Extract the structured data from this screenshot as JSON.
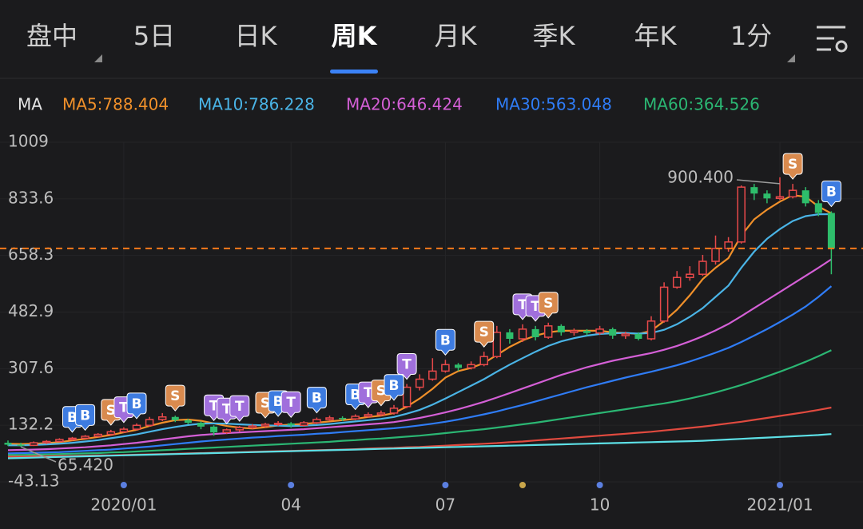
{
  "tabs": [
    "盘中",
    "5日",
    "日K",
    "周K",
    "月K",
    "季K",
    "年K",
    "1分"
  ],
  "active_tab": 3,
  "chart_data": {
    "type": "candlestick",
    "legend_title": "MA",
    "categories": [
      null,
      null,
      null,
      null,
      null,
      null,
      null,
      null,
      null,
      "2020/01",
      null,
      null,
      null,
      null,
      null,
      null,
      null,
      null,
      null,
      null,
      null,
      null,
      "04",
      null,
      null,
      null,
      null,
      null,
      null,
      null,
      null,
      null,
      null,
      null,
      "07",
      null,
      null,
      null,
      null,
      null,
      null,
      null,
      null,
      null,
      null,
      null,
      "10",
      null,
      null,
      null,
      null,
      null,
      null,
      null,
      null,
      null,
      null,
      null,
      null,
      null,
      "2021/01",
      null,
      null,
      null,
      null
    ],
    "open": [
      78,
      72,
      70,
      78,
      82,
      88,
      92,
      98,
      104,
      112,
      120,
      132,
      150,
      158,
      148,
      140,
      128,
      110,
      118,
      125,
      130,
      135,
      138,
      132,
      140,
      150,
      155,
      152,
      160,
      165,
      170,
      190,
      250,
      275,
      300,
      320,
      310,
      320,
      345,
      420,
      400,
      430,
      405,
      440,
      420,
      425,
      418,
      430,
      410,
      415,
      400,
      455,
      560,
      590,
      600,
      640,
      680,
      700,
      870,
      850,
      835,
      840,
      860,
      820,
      790
    ],
    "high": [
      85,
      78,
      82,
      86,
      92,
      96,
      102,
      108,
      118,
      126,
      138,
      158,
      170,
      162,
      152,
      144,
      132,
      122,
      130,
      136,
      140,
      145,
      142,
      145,
      156,
      162,
      160,
      166,
      172,
      178,
      195,
      260,
      290,
      340,
      335,
      325,
      330,
      360,
      440,
      430,
      445,
      440,
      450,
      445,
      432,
      430,
      440,
      435,
      422,
      420,
      470,
      575,
      610,
      625,
      660,
      720,
      715,
      875,
      880,
      860,
      900.4,
      880,
      870,
      830,
      795
    ],
    "low": [
      68,
      65.42,
      68,
      74,
      80,
      85,
      90,
      95,
      100,
      108,
      116,
      128,
      145,
      142,
      135,
      120,
      100,
      105,
      112,
      120,
      125,
      130,
      125,
      128,
      136,
      145,
      145,
      148,
      155,
      160,
      165,
      185,
      240,
      270,
      295,
      300,
      305,
      315,
      340,
      385,
      390,
      395,
      400,
      410,
      410,
      410,
      412,
      400,
      400,
      395,
      395,
      450,
      555,
      580,
      595,
      630,
      670,
      695,
      830,
      820,
      830,
      835,
      810,
      780,
      600
    ],
    "close": [
      72,
      70,
      78,
      82,
      88,
      92,
      98,
      104,
      112,
      120,
      132,
      150,
      158,
      148,
      140,
      128,
      110,
      118,
      125,
      130,
      135,
      138,
      132,
      140,
      150,
      155,
      152,
      160,
      165,
      170,
      185,
      250,
      275,
      300,
      320,
      310,
      320,
      345,
      420,
      400,
      430,
      405,
      440,
      420,
      425,
      418,
      430,
      410,
      415,
      400,
      455,
      560,
      590,
      600,
      640,
      680,
      700,
      870,
      850,
      835,
      840,
      860,
      820,
      790,
      680
    ],
    "up_color": "#e8494a",
    "down_color": "#2ebd6b",
    "series": [
      {
        "label": "MA5:788.404",
        "color": "#f0902a",
        "values": [
          75,
          74,
          75,
          77,
          80,
          85,
          90,
          96,
          102,
          110,
          118,
          130,
          140,
          148,
          150,
          146,
          138,
          130,
          125,
          122,
          126,
          132,
          134,
          136,
          140,
          144,
          148,
          152,
          158,
          162,
          170,
          190,
          215,
          245,
          280,
          300,
          310,
          325,
          350,
          375,
          395,
          410,
          420,
          425,
          425,
          425,
          425,
          420,
          418,
          415,
          425,
          455,
          490,
          535,
          585,
          620,
          650,
          720,
          770,
          800,
          825,
          845,
          840,
          810,
          788.404
        ]
      },
      {
        "label": "MA10:786.228",
        "color": "#4ab4e6",
        "values": [
          70,
          70,
          71,
          73,
          75,
          78,
          82,
          86,
          92,
          98,
          104,
          112,
          120,
          127,
          133,
          137,
          138,
          137,
          135,
          133,
          132,
          131,
          130,
          131,
          133,
          136,
          140,
          144,
          148,
          152,
          158,
          168,
          180,
          196,
          215,
          235,
          255,
          275,
          298,
          320,
          340,
          360,
          378,
          392,
          402,
          410,
          415,
          417,
          418,
          416,
          418,
          428,
          445,
          468,
          495,
          530,
          565,
          620,
          670,
          710,
          740,
          765,
          780,
          786,
          786.228
        ]
      },
      {
        "label": "MA20:646.424",
        "color": "#d45fd6",
        "values": [
          55,
          56,
          57,
          58,
          60,
          62,
          64,
          67,
          70,
          74,
          78,
          83,
          88,
          93,
          98,
          102,
          105,
          108,
          110,
          112,
          114,
          116,
          118,
          120,
          123,
          126,
          129,
          132,
          135,
          138,
          142,
          148,
          155,
          163,
          172,
          182,
          193,
          205,
          218,
          232,
          246,
          260,
          274,
          288,
          300,
          312,
          322,
          332,
          340,
          348,
          356,
          366,
          378,
          392,
          408,
          426,
          446,
          470,
          495,
          520,
          545,
          570,
          595,
          620,
          646.424
        ]
      },
      {
        "label": "MA30:563.048",
        "color": "#2f7cf6",
        "values": [
          45,
          46,
          47,
          48,
          49,
          51,
          53,
          55,
          57,
          60,
          63,
          66,
          70,
          74,
          78,
          82,
          85,
          88,
          91,
          94,
          96,
          99,
          101,
          103,
          106,
          108,
          111,
          114,
          117,
          120,
          123,
          127,
          132,
          137,
          143,
          150,
          158,
          166,
          175,
          185,
          195,
          206,
          217,
          228,
          239,
          250,
          260,
          270,
          280,
          289,
          298,
          308,
          318,
          330,
          343,
          357,
          372,
          390,
          410,
          430,
          452,
          475,
          500,
          530,
          563.048
        ]
      },
      {
        "label": "MA60:364.526",
        "color": "#2bb673",
        "values": [
          40,
          40,
          41,
          42,
          43,
          44,
          45,
          46,
          48,
          49,
          51,
          53,
          55,
          57,
          59,
          61,
          63,
          65,
          67,
          69,
          71,
          73,
          75,
          77,
          79,
          81,
          84,
          86,
          89,
          91,
          94,
          97,
          100,
          104,
          108,
          112,
          116,
          120,
          125,
          130,
          135,
          140,
          146,
          152,
          158,
          164,
          170,
          176,
          182,
          188,
          194,
          200,
          207,
          215,
          224,
          234,
          245,
          257,
          270,
          284,
          298,
          313,
          329,
          346,
          364.526
        ]
      },
      {
        "color": "#e04a3f",
        "values": [
          35,
          35,
          36,
          36,
          37,
          37,
          38,
          39,
          39,
          40,
          41,
          42,
          43,
          44,
          45,
          46,
          47,
          48,
          49,
          50,
          51,
          52,
          53,
          54,
          55,
          56,
          57,
          58,
          60,
          61,
          62,
          64,
          65,
          67,
          69,
          71,
          73,
          75,
          77,
          80,
          82,
          85,
          88,
          91,
          94,
          97,
          100,
          103,
          106,
          109,
          112,
          116,
          120,
          124,
          128,
          133,
          138,
          143,
          149,
          155,
          161,
          167,
          173,
          180,
          187
        ]
      },
      {
        "color": "#5de0e6",
        "values": [
          30,
          31,
          32,
          33,
          34,
          35,
          36,
          37,
          38,
          39,
          40,
          41,
          42,
          43,
          44,
          45,
          46,
          47,
          48,
          49,
          50,
          51,
          52,
          53,
          54,
          55,
          56,
          57,
          58,
          59,
          60,
          61,
          62,
          63,
          64,
          65,
          66,
          67,
          68,
          69,
          70,
          71,
          72,
          73,
          74,
          75,
          76,
          77,
          78,
          79,
          80,
          81,
          82,
          83,
          84,
          86,
          88,
          90,
          92,
          94,
          96,
          98,
          100,
          102,
          105
        ]
      }
    ],
    "ylim": [
      -43.13,
      1009
    ],
    "yticks": [
      1009,
      833.6,
      658.3,
      482.9,
      307.6,
      132.2,
      -43.13
    ],
    "grid": true,
    "last_price": 680,
    "last_price_color": "#ff7a1a",
    "max_label": "900.400",
    "min_label": "65.420",
    "markers": [
      {
        "index": 5,
        "label": "B"
      },
      {
        "index": 6,
        "label": "B"
      },
      {
        "index": 8,
        "label": "S"
      },
      {
        "index": 9,
        "label": "T"
      },
      {
        "index": 10,
        "label": "B"
      },
      {
        "index": 13,
        "label": "S"
      },
      {
        "index": 16,
        "label": "T"
      },
      {
        "index": 17,
        "label": "T"
      },
      {
        "index": 18,
        "label": "T"
      },
      {
        "index": 20,
        "label": "S"
      },
      {
        "index": 21,
        "label": "B"
      },
      {
        "index": 22,
        "label": "T"
      },
      {
        "index": 24,
        "label": "B"
      },
      {
        "index": 27,
        "label": "B"
      },
      {
        "index": 28,
        "label": "T"
      },
      {
        "index": 29,
        "label": "S"
      },
      {
        "index": 30,
        "label": "B"
      },
      {
        "index": 31,
        "label": "T"
      },
      {
        "index": 34,
        "label": "B"
      },
      {
        "index": 37,
        "label": "S"
      },
      {
        "index": 40,
        "label": "T"
      },
      {
        "index": 41,
        "label": "T"
      },
      {
        "index": 42,
        "label": "S"
      },
      {
        "index": 61,
        "label": "S"
      },
      {
        "index": 64,
        "label": "B"
      }
    ],
    "marker_colors": {
      "B": "#3d7be0",
      "S": "#d98a4e",
      "T": "#a06fdc"
    },
    "event_dots": [
      {
        "index": 9,
        "color": "#5b7fe0"
      },
      {
        "index": 22,
        "color": "#5b7fe0"
      },
      {
        "index": 34,
        "color": "#5b7fe0"
      },
      {
        "index": 40,
        "color": "#c9a64a"
      },
      {
        "index": 46,
        "color": "#5b7fe0"
      },
      {
        "index": 60,
        "color": "#5b7fe0"
      }
    ]
  }
}
